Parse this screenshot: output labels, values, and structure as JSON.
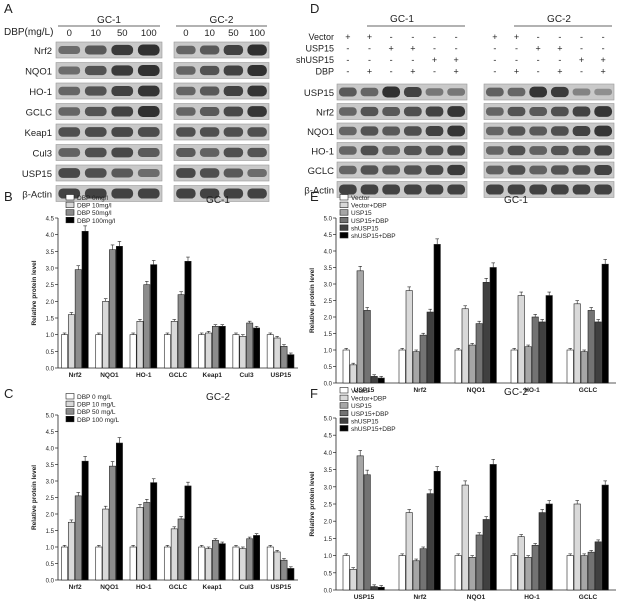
{
  "colors": {
    "band_bg": "#c9c9c9",
    "band_ink": "#2a2a2a",
    "bar_fills": [
      "#ffffff",
      "#d9d9d9",
      "#8c8c8c",
      "#000000"
    ],
    "bar_fills6": [
      "#ffffff",
      "#d9d9d9",
      "#a6a6a6",
      "#737373",
      "#404040",
      "#000000"
    ]
  },
  "panelA": {
    "letter": "A",
    "dose_label": "DBP(mg/L)",
    "doses": [
      "0",
      "10",
      "50",
      "100"
    ],
    "groups": [
      "GC-1",
      "GC-2"
    ],
    "proteins": [
      "Nrf2",
      "NQO1",
      "HO-1",
      "GCLC",
      "Keap1",
      "Cul3",
      "USP15",
      "β-Actin"
    ],
    "intensity": {
      "GC-1": [
        [
          0.45,
          0.6,
          0.85,
          0.95
        ],
        [
          0.45,
          0.65,
          0.85,
          0.95
        ],
        [
          0.5,
          0.65,
          0.8,
          0.9
        ],
        [
          0.5,
          0.65,
          0.8,
          0.95
        ],
        [
          0.7,
          0.72,
          0.75,
          0.72
        ],
        [
          0.55,
          0.7,
          0.75,
          0.6
        ],
        [
          0.75,
          0.7,
          0.6,
          0.45
        ],
        [
          0.8,
          0.8,
          0.8,
          0.8
        ]
      ],
      "GC-2": [
        [
          0.5,
          0.6,
          0.8,
          0.95
        ],
        [
          0.5,
          0.65,
          0.8,
          0.95
        ],
        [
          0.5,
          0.6,
          0.8,
          0.9
        ],
        [
          0.5,
          0.6,
          0.75,
          0.9
        ],
        [
          0.7,
          0.7,
          0.7,
          0.7
        ],
        [
          0.6,
          0.55,
          0.7,
          0.65
        ],
        [
          0.75,
          0.7,
          0.6,
          0.45
        ],
        [
          0.8,
          0.8,
          0.8,
          0.8
        ]
      ]
    }
  },
  "panelD": {
    "letter": "D",
    "groups": [
      "GC-1",
      "GC-2"
    ],
    "row_labels": [
      "Vector",
      "USP15",
      "shUSP15",
      "DBP"
    ],
    "signs": [
      [
        "+",
        "+",
        "-",
        "-",
        "-",
        "-"
      ],
      [
        "-",
        "-",
        "+",
        "+",
        "-",
        "-"
      ],
      [
        "-",
        "-",
        "-",
        "-",
        "+",
        "+"
      ],
      [
        "-",
        "+",
        "-",
        "+",
        "-",
        "+"
      ]
    ],
    "proteins": [
      "USP15",
      "Nrf2",
      "NQO1",
      "HO-1",
      "GCLC",
      "β-Actin"
    ],
    "intensity": {
      "GC-1": [
        [
          0.6,
          0.5,
          0.95,
          0.8,
          0.35,
          0.35
        ],
        [
          0.5,
          0.65,
          0.6,
          0.7,
          0.8,
          0.9
        ],
        [
          0.5,
          0.65,
          0.6,
          0.7,
          0.8,
          0.9
        ],
        [
          0.5,
          0.7,
          0.55,
          0.65,
          0.7,
          0.8
        ],
        [
          0.5,
          0.65,
          0.6,
          0.65,
          0.75,
          0.85
        ],
        [
          0.8,
          0.8,
          0.8,
          0.8,
          0.8,
          0.8
        ]
      ],
      "GC-2": [
        [
          0.55,
          0.5,
          0.9,
          0.85,
          0.25,
          0.15
        ],
        [
          0.5,
          0.65,
          0.6,
          0.7,
          0.8,
          0.9
        ],
        [
          0.5,
          0.65,
          0.6,
          0.7,
          0.8,
          0.9
        ],
        [
          0.5,
          0.7,
          0.55,
          0.65,
          0.7,
          0.8
        ],
        [
          0.55,
          0.7,
          0.55,
          0.65,
          0.7,
          0.8
        ],
        [
          0.8,
          0.8,
          0.8,
          0.8,
          0.8,
          0.8
        ]
      ]
    }
  },
  "chart_data": [
    {
      "panel": "B",
      "type": "bar",
      "title": "GC-1",
      "ylabel": "Relative protein level",
      "ylim": [
        0,
        4.5
      ],
      "yticks": [
        0.0,
        0.5,
        1.0,
        1.5,
        2.0,
        2.5,
        3.0,
        3.5,
        4.0,
        4.5
      ],
      "categories": [
        "Nrf2",
        "NQO1",
        "HO-1",
        "GCLC",
        "Keap1",
        "Cul3",
        "USP15"
      ],
      "series": [
        {
          "name": "DBP 0mg/l",
          "values": [
            1.0,
            1.0,
            1.0,
            1.0,
            1.0,
            1.0,
            1.0
          ]
        },
        {
          "name": "DBP 10mg/l",
          "values": [
            1.6,
            2.0,
            1.4,
            1.4,
            1.05,
            0.95,
            0.9
          ]
        },
        {
          "name": "DBP 50mg/l",
          "values": [
            2.95,
            3.55,
            2.5,
            2.2,
            1.25,
            1.35,
            0.65
          ]
        },
        {
          "name": "DBP 100mg/l",
          "values": [
            4.1,
            3.65,
            3.1,
            3.2,
            1.25,
            1.2,
            0.4
          ]
        }
      ],
      "legend": "top-left"
    },
    {
      "panel": "C",
      "type": "bar",
      "title": "GC-2",
      "ylabel": "Relative protein level",
      "ylim": [
        0,
        5.0
      ],
      "yticks": [
        0.0,
        0.5,
        1.0,
        1.5,
        2.0,
        2.5,
        3.0,
        3.5,
        4.0,
        4.5,
        5.0
      ],
      "categories": [
        "Nrf2",
        "NQO1",
        "HO-1",
        "GCLC",
        "Keap1",
        "Cul3",
        "USP15"
      ],
      "series": [
        {
          "name": "DBP  0  mg/L",
          "values": [
            1.0,
            1.0,
            1.0,
            1.0,
            1.0,
            1.0,
            1.0
          ]
        },
        {
          "name": "DBP  10  mg/L",
          "values": [
            1.75,
            2.15,
            2.2,
            1.55,
            0.95,
            0.95,
            0.85
          ]
        },
        {
          "name": "DBP  50  mg/L",
          "values": [
            2.55,
            3.45,
            2.35,
            1.85,
            1.2,
            1.25,
            0.6
          ]
        },
        {
          "name": "DBP 100 mg/L",
          "values": [
            3.6,
            4.15,
            2.95,
            2.85,
            1.1,
            1.35,
            0.35
          ]
        }
      ],
      "legend": "top-left"
    },
    {
      "panel": "E",
      "type": "bar",
      "title": "GC-1",
      "ylabel": "Relative protein level",
      "ylim": [
        0,
        5.0
      ],
      "yticks": [
        0.0,
        0.5,
        1.0,
        1.5,
        2.0,
        2.5,
        3.0,
        3.5,
        4.0,
        4.5,
        5.0
      ],
      "categories": [
        "USP15",
        "Nrf2",
        "NQO1",
        "HO-1",
        "GCLC"
      ],
      "series": [
        {
          "name": "Vector",
          "values": [
            1.0,
            1.0,
            1.0,
            1.0,
            1.0
          ]
        },
        {
          "name": "Vector+DBP",
          "values": [
            0.55,
            2.8,
            2.25,
            2.65,
            2.4
          ]
        },
        {
          "name": "USP15",
          "values": [
            3.4,
            0.95,
            1.15,
            1.1,
            0.95
          ]
        },
        {
          "name": "USP15+DBP",
          "values": [
            2.2,
            1.45,
            1.8,
            2.0,
            2.2
          ]
        },
        {
          "name": "shUSP15",
          "values": [
            0.2,
            2.15,
            3.05,
            1.85,
            1.85
          ]
        },
        {
          "name": "shUSP15+DBP",
          "values": [
            0.15,
            4.2,
            3.5,
            2.65,
            3.6
          ]
        }
      ],
      "legend": "top-left"
    },
    {
      "panel": "F",
      "type": "bar",
      "title": "GC-2",
      "ylabel": "Relative protein level",
      "ylim": [
        0,
        5.0
      ],
      "yticks": [
        0.0,
        0.5,
        1.0,
        1.5,
        2.0,
        2.5,
        3.0,
        3.5,
        4.0,
        4.5,
        5.0
      ],
      "categories": [
        "USP15",
        "Nrf2",
        "NQO1",
        "HO-1",
        "GCLC"
      ],
      "series": [
        {
          "name": "Vector",
          "values": [
            1.0,
            1.0,
            1.0,
            1.0,
            1.0
          ]
        },
        {
          "name": "Vector+DBP",
          "values": [
            0.6,
            2.25,
            3.05,
            1.55,
            2.5
          ]
        },
        {
          "name": "USP15",
          "values": [
            3.9,
            0.85,
            0.95,
            0.95,
            1.0
          ]
        },
        {
          "name": "USP15+DBP",
          "values": [
            3.35,
            1.2,
            1.6,
            1.3,
            1.1
          ]
        },
        {
          "name": "shUSP15",
          "values": [
            0.1,
            2.8,
            2.05,
            2.25,
            1.4
          ]
        },
        {
          "name": "shUSP15+DBP",
          "values": [
            0.08,
            3.45,
            3.65,
            2.5,
            3.05
          ]
        }
      ],
      "legend": "top-left"
    }
  ]
}
